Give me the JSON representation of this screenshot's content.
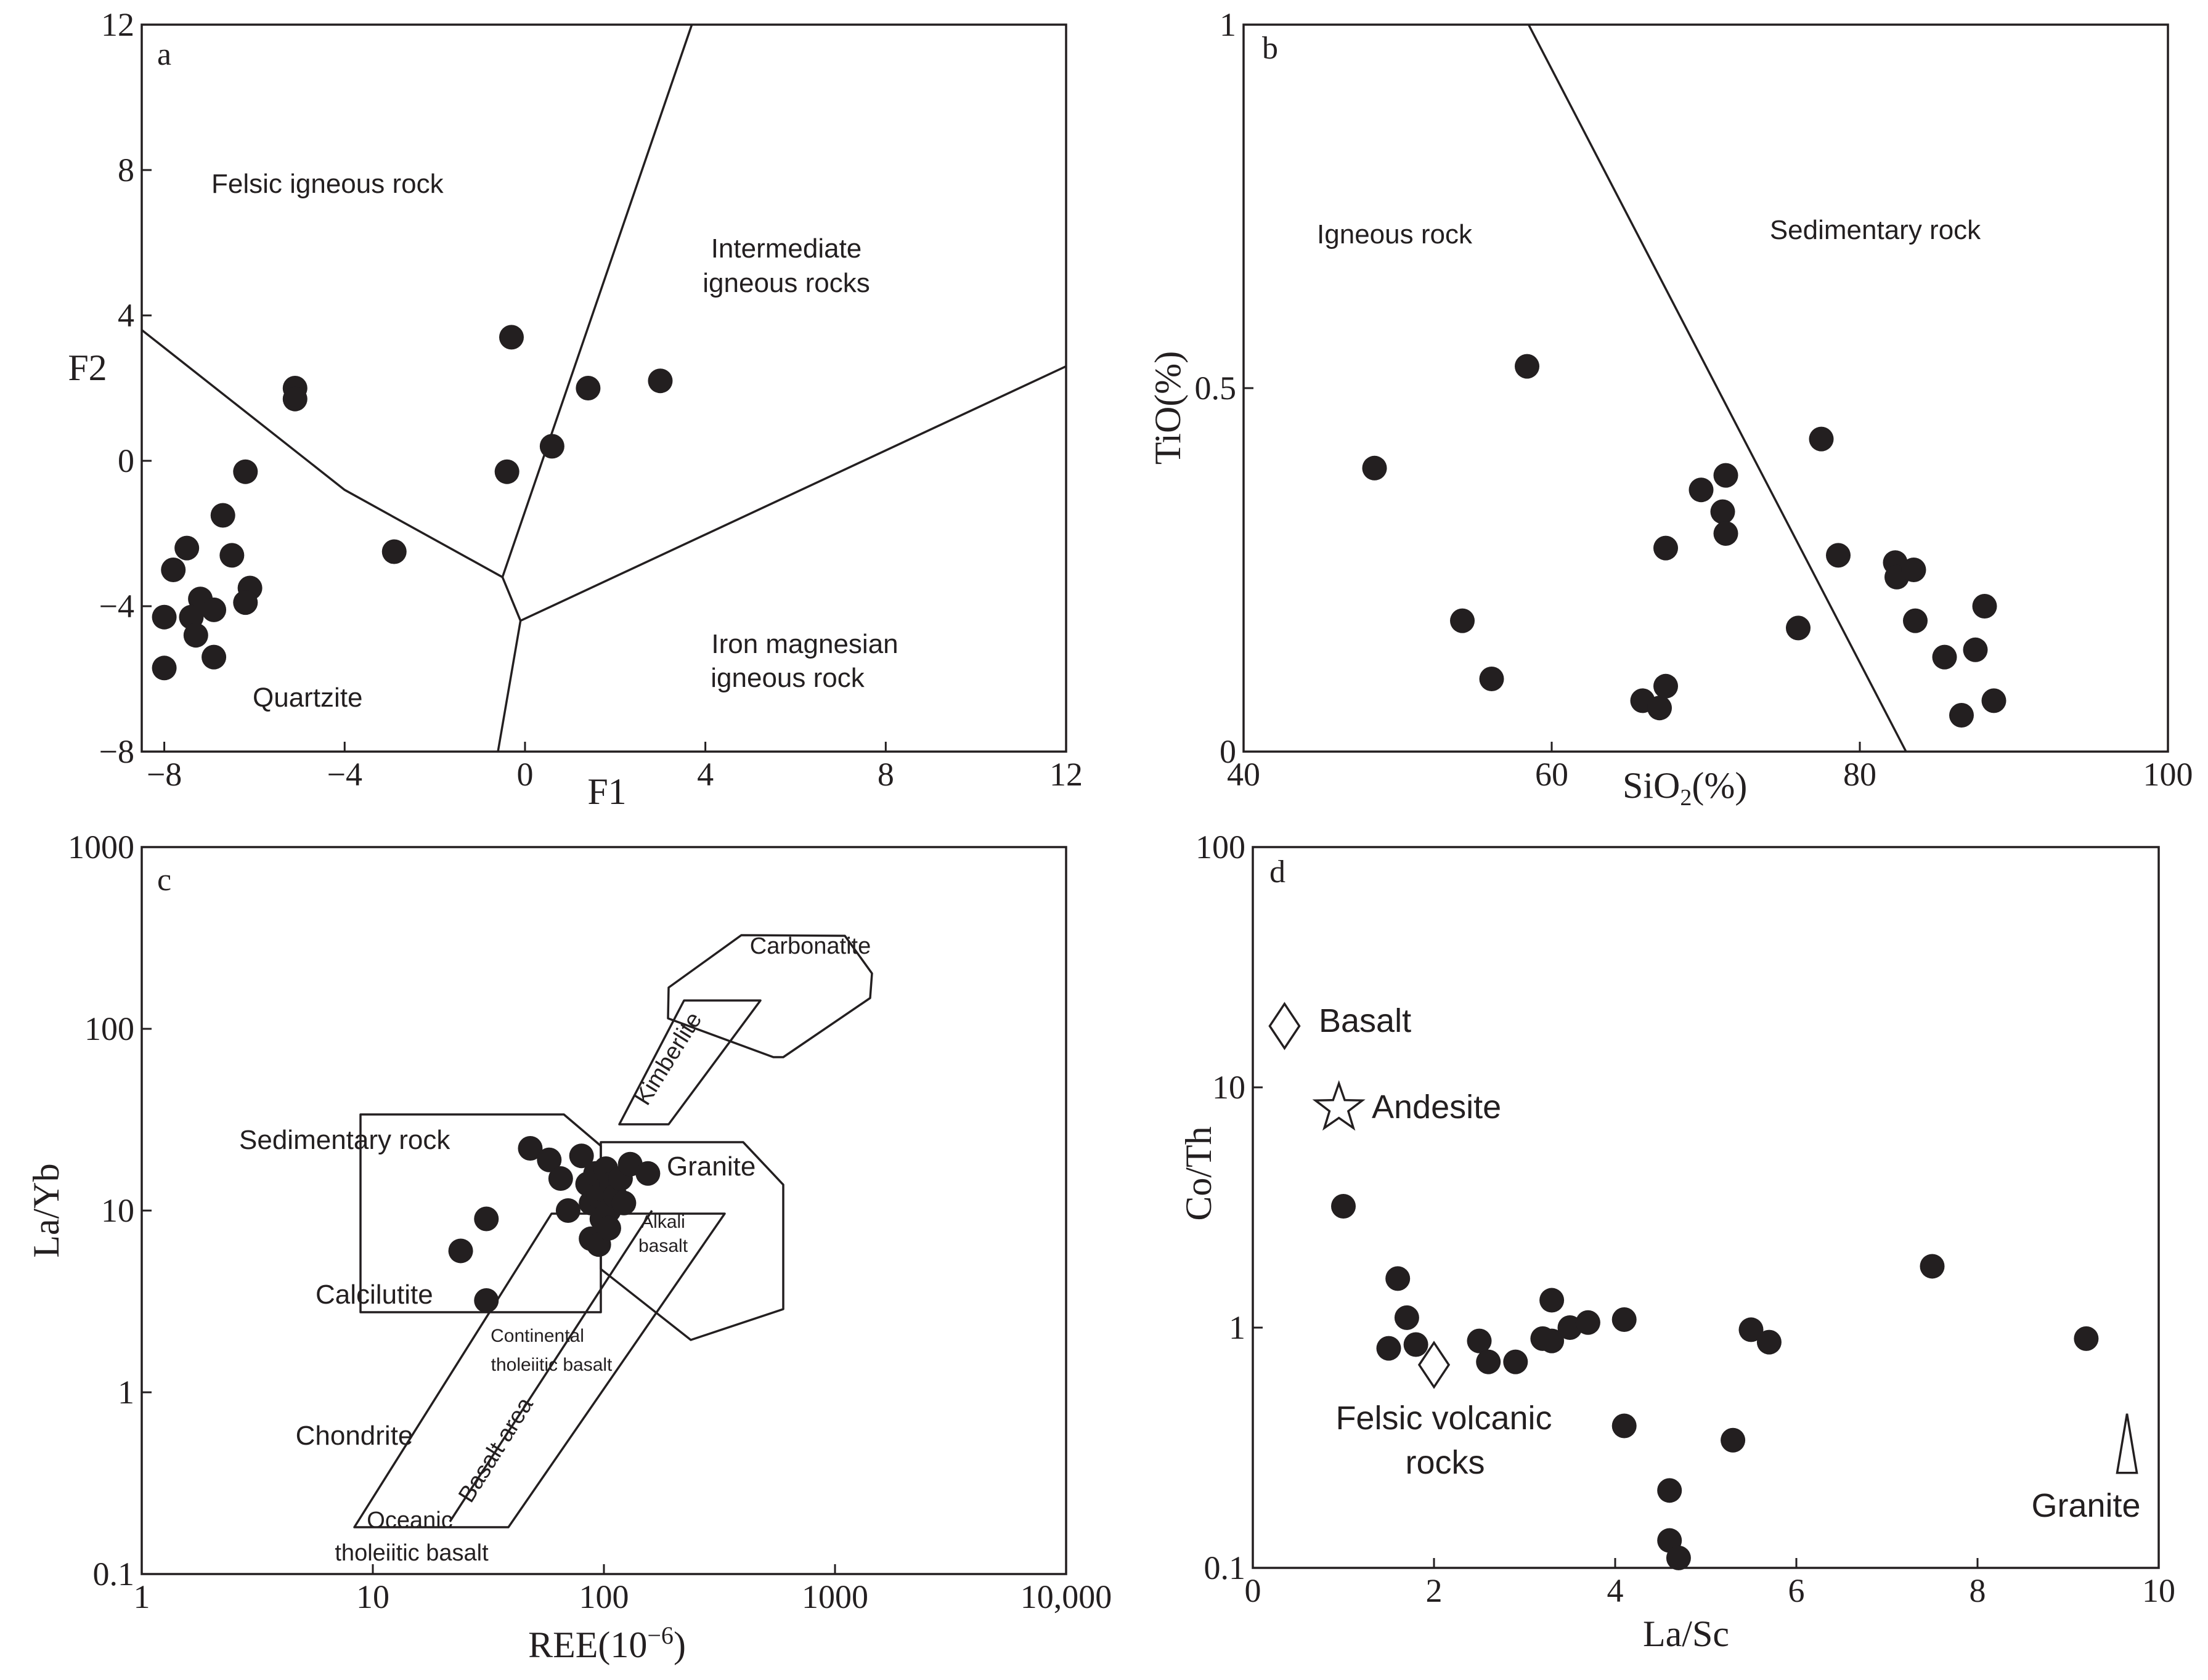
{
  "chart_data": [
    {
      "type": "scatter",
      "panel_label": "a",
      "xlabel": "F1",
      "ylabel": "F2",
      "xlim": [
        -8.5,
        12
      ],
      "ylim": [
        -8,
        12
      ],
      "xticks": [
        -8,
        -4,
        0,
        4,
        8,
        12
      ],
      "xtick_labels": [
        "−8",
        "−4",
        "0",
        "4",
        "8",
        "12"
      ],
      "yticks": [
        12,
        8,
        4,
        0,
        -4,
        -8
      ],
      "ytick_labels": [
        "12",
        "8",
        "4",
        "0",
        "−4",
        "−8"
      ],
      "regions": [
        "Felsic igneous rock",
        "Intermediate",
        "igneous rocks",
        "Iron magnesian",
        "igneous rock",
        "Quartzite"
      ],
      "boundaries": [
        [
          [
            -8.5,
            3.6
          ],
          [
            -4.0,
            -0.8
          ],
          [
            -0.5,
            -3.2
          ],
          [
            -0.1,
            -4.4
          ],
          [
            -0.6,
            -8.0
          ]
        ],
        [
          [
            -0.5,
            -3.2
          ],
          [
            3.7,
            12.0
          ]
        ],
        [
          [
            -0.1,
            -4.4
          ],
          [
            12.0,
            2.6
          ]
        ]
      ],
      "points": [
        [
          -0.3,
          3.4
        ],
        [
          -5.1,
          2.0
        ],
        [
          -5.1,
          1.7
        ],
        [
          1.4,
          2.0
        ],
        [
          3.0,
          2.2
        ],
        [
          -0.4,
          -0.3
        ],
        [
          0.6,
          0.4
        ],
        [
          -6.2,
          -0.3
        ],
        [
          -6.7,
          -1.5
        ],
        [
          -7.5,
          -2.4
        ],
        [
          -6.5,
          -2.6
        ],
        [
          -7.8,
          -3.0
        ],
        [
          -2.9,
          -2.5
        ],
        [
          -6.1,
          -3.5
        ],
        [
          -7.2,
          -3.8
        ],
        [
          -6.2,
          -3.9
        ],
        [
          -6.9,
          -4.1
        ],
        [
          -7.4,
          -4.3
        ],
        [
          -8.0,
          -4.3
        ],
        [
          -7.3,
          -4.8
        ],
        [
          -6.9,
          -5.4
        ],
        [
          -8.0,
          -5.7
        ]
      ]
    },
    {
      "type": "scatter",
      "panel_label": "b",
      "xlabel": "SiO",
      "xlabel_sub": "2",
      "xlabel_suffix": "(%)",
      "ylabel": "TiO(%)",
      "xlim": [
        40,
        100
      ],
      "ylim": [
        0,
        1
      ],
      "xticks": [
        40,
        60,
        80,
        100
      ],
      "xtick_labels": [
        "40",
        "60",
        "80",
        "100"
      ],
      "yticks": [
        1,
        0.5,
        0
      ],
      "ytick_labels": [
        "1",
        "0.5",
        "0"
      ],
      "regions": [
        "Igneous rock",
        "Sedimentary rock"
      ],
      "boundaries": [
        [
          [
            58.5,
            1.0
          ],
          [
            83.0,
            0.0
          ]
        ]
      ],
      "points": [
        [
          58.4,
          0.53
        ],
        [
          48.5,
          0.39
        ],
        [
          54.2,
          0.18
        ],
        [
          56.1,
          0.1
        ],
        [
          65.9,
          0.07
        ],
        [
          67.0,
          0.06
        ],
        [
          67.4,
          0.09
        ],
        [
          67.4,
          0.28
        ],
        [
          69.7,
          0.36
        ],
        [
          71.1,
          0.33
        ],
        [
          71.3,
          0.38
        ],
        [
          71.3,
          0.3
        ],
        [
          76.0,
          0.17
        ],
        [
          77.5,
          0.43
        ],
        [
          78.6,
          0.27
        ],
        [
          82.3,
          0.26
        ],
        [
          82.4,
          0.24
        ],
        [
          83.5,
          0.25
        ],
        [
          83.6,
          0.18
        ],
        [
          85.5,
          0.13
        ],
        [
          86.6,
          0.05
        ],
        [
          87.5,
          0.14
        ],
        [
          88.1,
          0.2
        ],
        [
          88.7,
          0.07
        ]
      ]
    },
    {
      "type": "scatter",
      "panel_label": "c",
      "xlabel": "REE(10",
      "xlabel_sup": "−6",
      "xlabel_suffix": ")",
      "ylabel": "La/Yb",
      "xscale": "log",
      "yscale": "log",
      "xlim": [
        1,
        10000
      ],
      "ylim": [
        0.1,
        1000
      ],
      "xticks": [
        1,
        10,
        100,
        1000,
        10000
      ],
      "xtick_labels": [
        "1",
        "10",
        "100",
        "1000",
        "10,000"
      ],
      "yticks": [
        1000,
        100,
        10,
        1,
        0.1
      ],
      "ytick_labels": [
        "1000",
        "100",
        "10",
        "1",
        "0.1"
      ],
      "regions": [
        "Carbonatite",
        "Kimberlite",
        "Sedimentary rock",
        "Granite",
        "Alkali",
        "basalt",
        "Calcilutite",
        "Continental",
        "tholeiitic basalt",
        "Chondrite",
        "Basalt area",
        "Oceanic",
        "tholeiitic basalt"
      ],
      "points": [
        [
          48,
          22
        ],
        [
          58,
          19
        ],
        [
          65,
          15
        ],
        [
          70,
          10
        ],
        [
          80,
          20
        ],
        [
          85,
          14
        ],
        [
          88,
          11
        ],
        [
          92,
          16
        ],
        [
          95,
          12
        ],
        [
          98,
          9
        ],
        [
          100,
          13
        ],
        [
          102,
          17
        ],
        [
          105,
          10
        ],
        [
          108,
          14
        ],
        [
          112,
          12
        ],
        [
          118,
          15
        ],
        [
          122,
          11
        ],
        [
          130,
          18
        ],
        [
          155,
          16
        ],
        [
          88,
          7
        ],
        [
          95,
          6.5
        ],
        [
          105,
          8
        ],
        [
          24,
          6
        ],
        [
          31,
          9
        ],
        [
          31,
          3.2
        ]
      ]
    },
    {
      "type": "scatter",
      "panel_label": "d",
      "xlabel": "La/Sc",
      "ylabel": "Co/Th",
      "xlim": [
        0,
        10
      ],
      "yscale": "log",
      "ylim": [
        0.1,
        100
      ],
      "xticks": [
        0,
        2,
        4,
        6,
        8,
        10
      ],
      "xtick_labels": [
        "0",
        "2",
        "4",
        "6",
        "8",
        "10"
      ],
      "yticks": [
        100,
        10,
        1,
        0.1
      ],
      "ytick_labels": [
        "100",
        "10",
        "1",
        "0.1"
      ],
      "reference": [
        {
          "name": "Basalt",
          "symbol": "diamond",
          "x": 0.35,
          "y": 18
        },
        {
          "name": "Andesite",
          "symbol": "star",
          "x": 0.95,
          "y": 8.2
        },
        {
          "name": "Felsic volcanic",
          "name_line2": "rocks",
          "symbol": "diamond",
          "x": 2.0,
          "y": 0.7
        },
        {
          "name": "Granite",
          "symbol": "triangle",
          "x": 9.65,
          "y": 0.33
        }
      ],
      "points": [
        [
          1.0,
          3.2
        ],
        [
          1.6,
          1.6
        ],
        [
          1.7,
          1.1
        ],
        [
          1.5,
          0.82
        ],
        [
          1.8,
          0.85
        ],
        [
          2.5,
          0.88
        ],
        [
          2.6,
          0.72
        ],
        [
          2.9,
          0.72
        ],
        [
          3.2,
          0.9
        ],
        [
          3.3,
          1.3
        ],
        [
          3.3,
          0.88
        ],
        [
          3.5,
          1.0
        ],
        [
          3.7,
          1.05
        ],
        [
          4.1,
          1.08
        ],
        [
          4.1,
          0.39
        ],
        [
          4.6,
          0.13
        ],
        [
          4.6,
          0.21
        ],
        [
          4.7,
          0.11
        ],
        [
          5.3,
          0.34
        ],
        [
          5.5,
          0.98
        ],
        [
          5.7,
          0.87
        ],
        [
          7.5,
          1.8
        ],
        [
          9.2,
          0.9
        ]
      ]
    }
  ]
}
